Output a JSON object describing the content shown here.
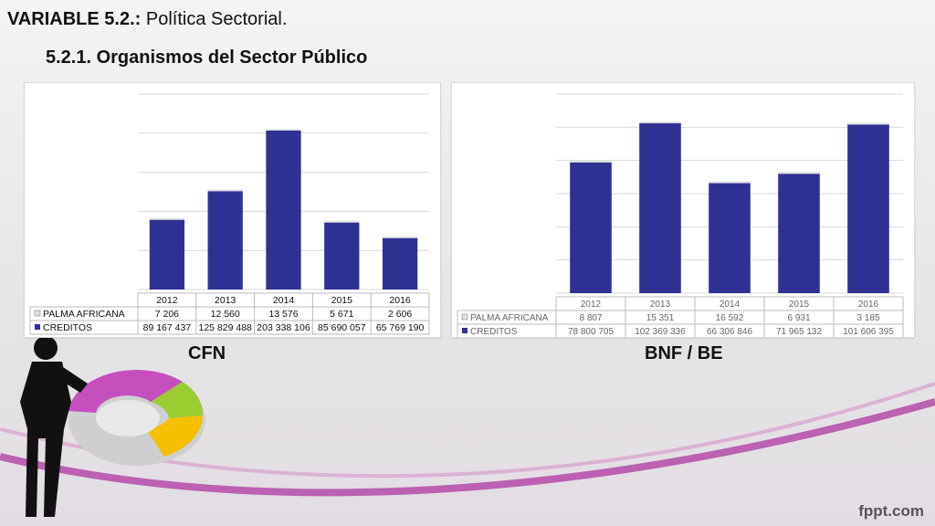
{
  "header": {
    "title_bold": "VARIABLE 5.2.:",
    "title_rest": " Política Sectorial.",
    "subtitle": "5.2.1. Organismos del Sector Público"
  },
  "captions": {
    "cfn": "CFN",
    "bnf": "BNF / BE"
  },
  "brand": "fppt.com",
  "colors": {
    "creditos": "#2e3192",
    "palma": "#e0e0e0",
    "grid": "#d9d9d9"
  },
  "chart_data": [
    {
      "type": "bar",
      "id": "cfn",
      "categories": [
        "2012",
        "2013",
        "2014",
        "2015",
        "2016"
      ],
      "series": [
        {
          "name": "PALMA AFRICANA",
          "values": [
            7206,
            12560,
            13576,
            5671,
            2606
          ],
          "labels": [
            "7 206",
            "12 560",
            "13 576",
            "5 671",
            "2 606"
          ]
        },
        {
          "name": "CREDITOS",
          "values": [
            89167437,
            125829488,
            203338106,
            85690057,
            65769190
          ],
          "labels": [
            "89 167 437",
            "125 829 488",
            "203 338 106",
            "85 690 057",
            "65 769 190"
          ]
        }
      ],
      "stacked": true,
      "ylim": [
        0,
        250000000
      ],
      "gridlines": 5,
      "legend": "data-table"
    },
    {
      "type": "bar",
      "id": "bnf",
      "categories": [
        "2012",
        "2013",
        "2014",
        "2015",
        "2016"
      ],
      "series": [
        {
          "name": "PALMA AFRICANA",
          "values": [
            8807,
            15351,
            16592,
            6931,
            3185
          ],
          "labels": [
            "8 807",
            "15 351",
            "16 592",
            "6 931",
            "3 185"
          ]
        },
        {
          "name": "CREDITOS",
          "values": [
            78800705,
            102369336,
            66306846,
            71965132,
            101606395
          ],
          "labels": [
            "78 800 705",
            "102 369 336",
            "66 306 846",
            "71 965 132",
            "101 606 395"
          ]
        }
      ],
      "stacked": true,
      "ylim": [
        0,
        120000000
      ],
      "gridlines": 6,
      "legend": "data-table"
    }
  ]
}
